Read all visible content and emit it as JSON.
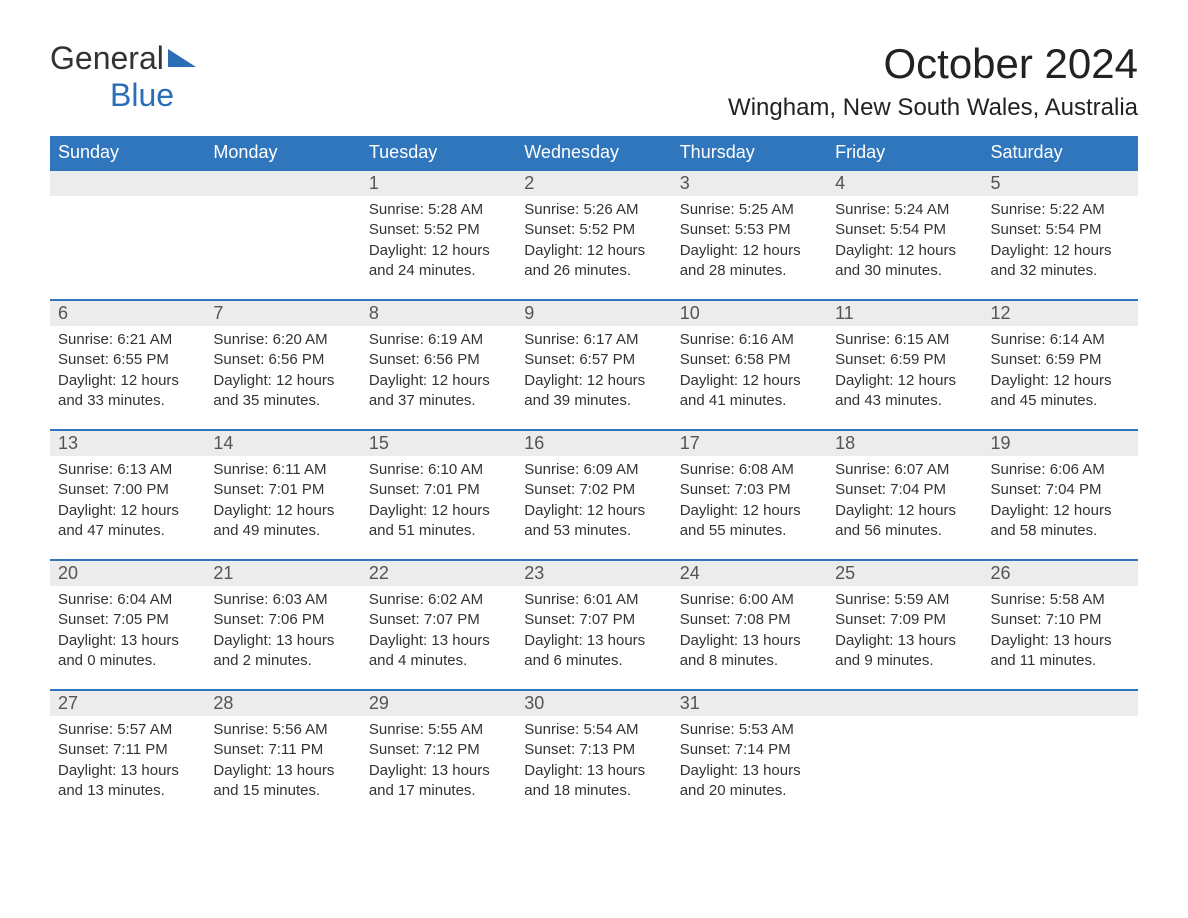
{
  "logo": {
    "line1": "General",
    "line2": "Blue",
    "shape_color": "#2a6eb8"
  },
  "title": {
    "month": "October 2024",
    "location": "Wingham, New South Wales, Australia"
  },
  "colors": {
    "header_bg": "#3076bd",
    "header_text": "#ffffff",
    "daynum_bg": "#ececec",
    "rule": "#3076bd",
    "body_text": "#333333"
  },
  "calendar": {
    "weekdays": [
      "Sunday",
      "Monday",
      "Tuesday",
      "Wednesday",
      "Thursday",
      "Friday",
      "Saturday"
    ],
    "first_weekday_index": 2,
    "days": [
      {
        "n": 1,
        "sunrise": "5:28 AM",
        "sunset": "5:52 PM",
        "dl_h": 12,
        "dl_m": 24
      },
      {
        "n": 2,
        "sunrise": "5:26 AM",
        "sunset": "5:52 PM",
        "dl_h": 12,
        "dl_m": 26
      },
      {
        "n": 3,
        "sunrise": "5:25 AM",
        "sunset": "5:53 PM",
        "dl_h": 12,
        "dl_m": 28
      },
      {
        "n": 4,
        "sunrise": "5:24 AM",
        "sunset": "5:54 PM",
        "dl_h": 12,
        "dl_m": 30
      },
      {
        "n": 5,
        "sunrise": "5:22 AM",
        "sunset": "5:54 PM",
        "dl_h": 12,
        "dl_m": 32
      },
      {
        "n": 6,
        "sunrise": "6:21 AM",
        "sunset": "6:55 PM",
        "dl_h": 12,
        "dl_m": 33
      },
      {
        "n": 7,
        "sunrise": "6:20 AM",
        "sunset": "6:56 PM",
        "dl_h": 12,
        "dl_m": 35
      },
      {
        "n": 8,
        "sunrise": "6:19 AM",
        "sunset": "6:56 PM",
        "dl_h": 12,
        "dl_m": 37
      },
      {
        "n": 9,
        "sunrise": "6:17 AM",
        "sunset": "6:57 PM",
        "dl_h": 12,
        "dl_m": 39
      },
      {
        "n": 10,
        "sunrise": "6:16 AM",
        "sunset": "6:58 PM",
        "dl_h": 12,
        "dl_m": 41
      },
      {
        "n": 11,
        "sunrise": "6:15 AM",
        "sunset": "6:59 PM",
        "dl_h": 12,
        "dl_m": 43
      },
      {
        "n": 12,
        "sunrise": "6:14 AM",
        "sunset": "6:59 PM",
        "dl_h": 12,
        "dl_m": 45
      },
      {
        "n": 13,
        "sunrise": "6:13 AM",
        "sunset": "7:00 PM",
        "dl_h": 12,
        "dl_m": 47
      },
      {
        "n": 14,
        "sunrise": "6:11 AM",
        "sunset": "7:01 PM",
        "dl_h": 12,
        "dl_m": 49
      },
      {
        "n": 15,
        "sunrise": "6:10 AM",
        "sunset": "7:01 PM",
        "dl_h": 12,
        "dl_m": 51
      },
      {
        "n": 16,
        "sunrise": "6:09 AM",
        "sunset": "7:02 PM",
        "dl_h": 12,
        "dl_m": 53
      },
      {
        "n": 17,
        "sunrise": "6:08 AM",
        "sunset": "7:03 PM",
        "dl_h": 12,
        "dl_m": 55
      },
      {
        "n": 18,
        "sunrise": "6:07 AM",
        "sunset": "7:04 PM",
        "dl_h": 12,
        "dl_m": 56
      },
      {
        "n": 19,
        "sunrise": "6:06 AM",
        "sunset": "7:04 PM",
        "dl_h": 12,
        "dl_m": 58
      },
      {
        "n": 20,
        "sunrise": "6:04 AM",
        "sunset": "7:05 PM",
        "dl_h": 13,
        "dl_m": 0
      },
      {
        "n": 21,
        "sunrise": "6:03 AM",
        "sunset": "7:06 PM",
        "dl_h": 13,
        "dl_m": 2
      },
      {
        "n": 22,
        "sunrise": "6:02 AM",
        "sunset": "7:07 PM",
        "dl_h": 13,
        "dl_m": 4
      },
      {
        "n": 23,
        "sunrise": "6:01 AM",
        "sunset": "7:07 PM",
        "dl_h": 13,
        "dl_m": 6
      },
      {
        "n": 24,
        "sunrise": "6:00 AM",
        "sunset": "7:08 PM",
        "dl_h": 13,
        "dl_m": 8
      },
      {
        "n": 25,
        "sunrise": "5:59 AM",
        "sunset": "7:09 PM",
        "dl_h": 13,
        "dl_m": 9
      },
      {
        "n": 26,
        "sunrise": "5:58 AM",
        "sunset": "7:10 PM",
        "dl_h": 13,
        "dl_m": 11
      },
      {
        "n": 27,
        "sunrise": "5:57 AM",
        "sunset": "7:11 PM",
        "dl_h": 13,
        "dl_m": 13
      },
      {
        "n": 28,
        "sunrise": "5:56 AM",
        "sunset": "7:11 PM",
        "dl_h": 13,
        "dl_m": 15
      },
      {
        "n": 29,
        "sunrise": "5:55 AM",
        "sunset": "7:12 PM",
        "dl_h": 13,
        "dl_m": 17
      },
      {
        "n": 30,
        "sunrise": "5:54 AM",
        "sunset": "7:13 PM",
        "dl_h": 13,
        "dl_m": 18
      },
      {
        "n": 31,
        "sunrise": "5:53 AM",
        "sunset": "7:14 PM",
        "dl_h": 13,
        "dl_m": 20
      }
    ],
    "labels": {
      "sunrise": "Sunrise:",
      "sunset": "Sunset:",
      "daylight": "Daylight:",
      "hours": "hours",
      "and": "and",
      "minutes": "minutes."
    }
  }
}
